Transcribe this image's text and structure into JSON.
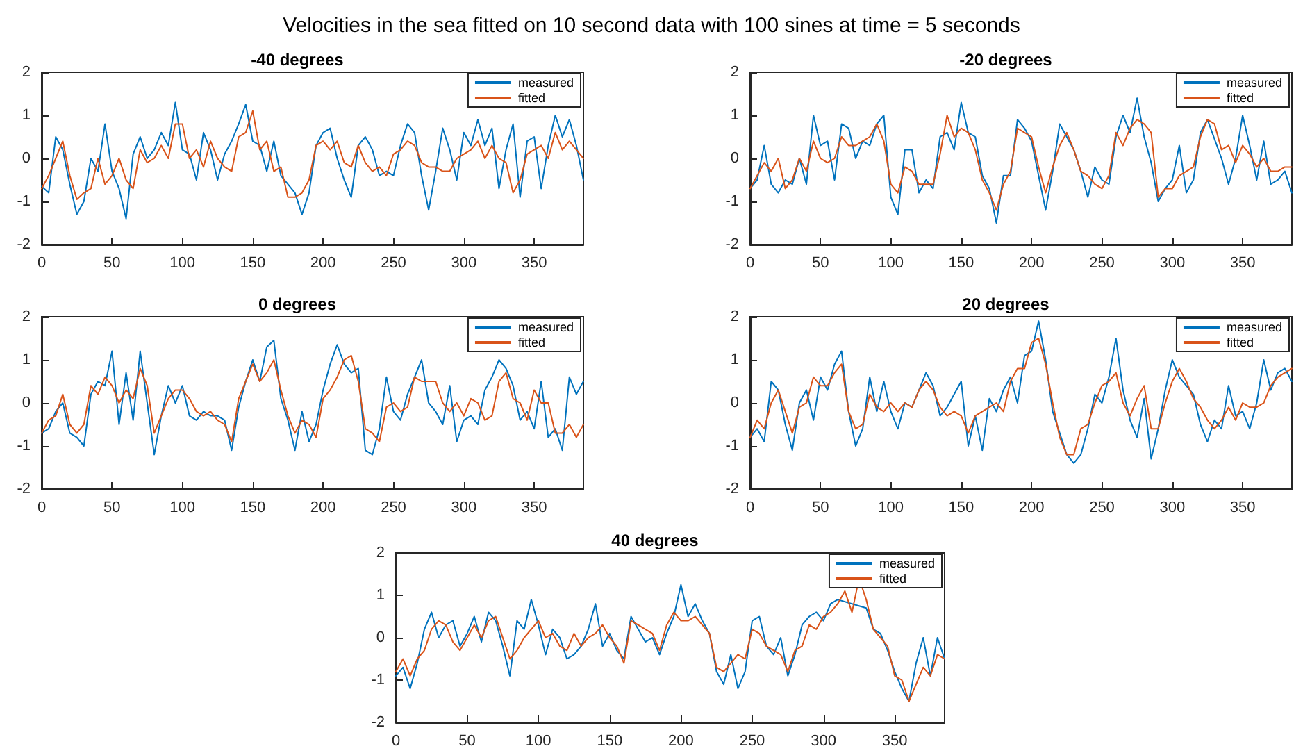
{
  "chart_data": [
    {
      "type": "line",
      "title": "-40 degrees",
      "annotations": [
        "Velocities in the sea fitted on 10 second data with 100 sines at time = 5 seconds"
      ],
      "legend": "top right",
      "grid": false,
      "xlim": [
        0,
        385
      ],
      "xticks": [
        0,
        50,
        100,
        150,
        200,
        250,
        300,
        350
      ],
      "ylim": [
        -2,
        2
      ],
      "yticks": [
        -2,
        -1,
        0,
        1,
        2
      ],
      "x": [
        0,
        5,
        10,
        15,
        20,
        25,
        30,
        35,
        40,
        45,
        50,
        55,
        60,
        65,
        70,
        75,
        80,
        85,
        90,
        95,
        100,
        105,
        110,
        115,
        120,
        125,
        130,
        135,
        140,
        145,
        150,
        155,
        160,
        165,
        170,
        175,
        180,
        185,
        190,
        195,
        200,
        205,
        210,
        215,
        220,
        225,
        230,
        235,
        240,
        245,
        250,
        255,
        260,
        265,
        270,
        275,
        280,
        285,
        290,
        295,
        300,
        305,
        310,
        315,
        320,
        325,
        330,
        335,
        340,
        345,
        350,
        355,
        360,
        365,
        370,
        375,
        380,
        385
      ],
      "series": [
        {
          "name": "measured",
          "color": "#0072bd",
          "values": [
            -0.65,
            -0.8,
            0.5,
            0.2,
            -0.6,
            -1.3,
            -1.0,
            0.0,
            -0.3,
            0.8,
            -0.3,
            -0.7,
            -1.4,
            0.1,
            0.5,
            0.0,
            0.2,
            0.6,
            0.3,
            1.3,
            0.2,
            0.1,
            -0.5,
            0.6,
            0.2,
            -0.5,
            0.1,
            0.4,
            0.8,
            1.25,
            0.4,
            0.3,
            -0.3,
            0.4,
            -0.4,
            -0.6,
            -0.8,
            -1.3,
            -0.8,
            0.3,
            0.6,
            0.7,
            0.0,
            -0.5,
            -0.9,
            0.3,
            0.5,
            0.2,
            -0.4,
            -0.3,
            -0.4,
            0.3,
            0.8,
            0.6,
            -0.4,
            -1.2,
            -0.3,
            0.7,
            0.2,
            -0.5,
            0.6,
            0.3,
            0.9,
            0.3,
            0.7,
            -0.7,
            0.2,
            0.8,
            -0.9,
            0.4,
            0.5,
            -0.7,
            0.3,
            1.0,
            0.5,
            0.9,
            0.3,
            -0.5
          ]
        },
        {
          "name": "fitted",
          "color": "#d95319",
          "values": [
            -0.7,
            -0.4,
            0.0,
            0.4,
            -0.4,
            -0.95,
            -0.8,
            -0.7,
            0.0,
            -0.6,
            -0.4,
            0.0,
            -0.5,
            -0.7,
            0.2,
            -0.1,
            0.0,
            0.3,
            0.0,
            0.8,
            0.8,
            0.0,
            0.2,
            -0.2,
            0.4,
            0.0,
            -0.2,
            -0.3,
            0.5,
            0.6,
            1.1,
            0.2,
            0.4,
            -0.3,
            -0.2,
            -0.9,
            -0.9,
            -0.8,
            -0.5,
            0.3,
            0.4,
            0.2,
            0.4,
            -0.1,
            -0.2,
            0.3,
            -0.1,
            -0.3,
            -0.2,
            -0.4,
            0.1,
            0.2,
            0.4,
            0.3,
            -0.1,
            -0.2,
            -0.2,
            -0.3,
            -0.3,
            0.0,
            0.1,
            0.2,
            0.4,
            0.0,
            0.3,
            0.0,
            -0.1,
            -0.8,
            -0.5,
            0.1,
            0.2,
            0.3,
            0.0,
            0.6,
            0.2,
            0.4,
            0.2,
            0.0
          ]
        }
      ]
    },
    {
      "type": "line",
      "title": "-20 degrees",
      "legend": "top right",
      "grid": false,
      "xlim": [
        0,
        385
      ],
      "xticks": [
        0,
        50,
        100,
        150,
        200,
        250,
        300,
        350
      ],
      "ylim": [
        -2,
        2
      ],
      "yticks": [
        -2,
        -1,
        0,
        1,
        2
      ],
      "x": [
        0,
        5,
        10,
        15,
        20,
        25,
        30,
        35,
        40,
        45,
        50,
        55,
        60,
        65,
        70,
        75,
        80,
        85,
        90,
        95,
        100,
        105,
        110,
        115,
        120,
        125,
        130,
        135,
        140,
        145,
        150,
        155,
        160,
        165,
        170,
        175,
        180,
        185,
        190,
        195,
        200,
        205,
        210,
        215,
        220,
        225,
        230,
        235,
        240,
        245,
        250,
        255,
        260,
        265,
        270,
        275,
        280,
        285,
        290,
        295,
        300,
        305,
        310,
        315,
        320,
        325,
        330,
        335,
        340,
        345,
        350,
        355,
        360,
        365,
        370,
        375,
        380,
        385
      ],
      "series": [
        {
          "name": "measured",
          "color": "#0072bd",
          "values": [
            -0.7,
            -0.5,
            0.3,
            -0.6,
            -0.8,
            -0.5,
            -0.6,
            0.0,
            -0.6,
            1.0,
            0.3,
            0.4,
            -0.5,
            0.8,
            0.7,
            0.0,
            0.4,
            0.3,
            0.8,
            1.0,
            -0.9,
            -1.3,
            0.2,
            0.2,
            -0.8,
            -0.5,
            -0.7,
            0.5,
            0.6,
            0.2,
            1.3,
            0.6,
            0.5,
            -0.4,
            -0.7,
            -1.5,
            -0.4,
            -0.4,
            0.9,
            0.7,
            0.4,
            -0.4,
            -1.2,
            -0.3,
            0.8,
            0.5,
            0.2,
            -0.3,
            -0.9,
            -0.2,
            -0.5,
            -0.6,
            0.5,
            1.0,
            0.6,
            1.4,
            0.5,
            -0.1,
            -1.0,
            -0.7,
            -0.5,
            0.3,
            -0.8,
            -0.5,
            0.6,
            0.9,
            null,
            0.0,
            -0.6,
            0.0,
            1.0,
            0.3,
            -0.5,
            0.4,
            -0.6,
            -0.5,
            -0.3,
            -0.8
          ]
        },
        {
          "name": "fitted",
          "color": "#d95319",
          "values": [
            -0.7,
            -0.4,
            -0.1,
            -0.3,
            0.0,
            -0.7,
            -0.5,
            0.0,
            -0.3,
            0.4,
            0.0,
            -0.1,
            0.0,
            0.5,
            0.3,
            0.3,
            0.4,
            0.5,
            0.8,
            0.4,
            -0.6,
            -0.8,
            -0.2,
            -0.3,
            -0.6,
            -0.6,
            -0.6,
            0.1,
            1.0,
            0.5,
            0.7,
            0.6,
            0.2,
            -0.5,
            -0.8,
            -1.2,
            -0.6,
            -0.3,
            0.7,
            0.6,
            0.5,
            -0.2,
            -0.8,
            -0.2,
            0.3,
            0.6,
            0.2,
            -0.3,
            -0.4,
            -0.6,
            -0.7,
            -0.4,
            0.6,
            0.3,
            0.7,
            0.9,
            0.8,
            0.6,
            -0.9,
            -0.7,
            -0.7,
            -0.4,
            -0.3,
            -0.2,
            0.5,
            0.9,
            0.8,
            0.2,
            0.3,
            -0.1,
            0.3,
            0.1,
            -0.2,
            0.0,
            -0.3,
            -0.3,
            -0.2,
            -0.2
          ]
        }
      ]
    },
    {
      "type": "line",
      "title": "0 degrees",
      "legend": "top right",
      "grid": false,
      "xlim": [
        0,
        385
      ],
      "xticks": [
        0,
        50,
        100,
        150,
        200,
        250,
        300,
        350
      ],
      "ylim": [
        -2,
        2
      ],
      "yticks": [
        -2,
        -1,
        0,
        1,
        2
      ],
      "x": [
        0,
        5,
        10,
        15,
        20,
        25,
        30,
        35,
        40,
        45,
        50,
        55,
        60,
        65,
        70,
        75,
        80,
        85,
        90,
        95,
        100,
        105,
        110,
        115,
        120,
        125,
        130,
        135,
        140,
        145,
        150,
        155,
        160,
        165,
        170,
        175,
        180,
        185,
        190,
        195,
        200,
        205,
        210,
        215,
        220,
        225,
        230,
        235,
        240,
        245,
        250,
        255,
        260,
        265,
        270,
        275,
        280,
        285,
        290,
        295,
        300,
        305,
        310,
        315,
        320,
        325,
        330,
        335,
        340,
        345,
        350,
        355,
        360,
        365,
        370,
        375,
        380,
        385
      ],
      "series": [
        {
          "name": "measured",
          "color": "#0072bd",
          "values": [
            -0.7,
            -0.6,
            -0.2,
            0.0,
            -0.7,
            -0.8,
            -1.0,
            0.2,
            0.5,
            0.4,
            1.2,
            -0.5,
            0.7,
            -0.4,
            1.2,
            0.0,
            -1.2,
            -0.3,
            0.4,
            0.0,
            0.4,
            -0.3,
            -0.4,
            -0.2,
            -0.3,
            -0.3,
            -0.4,
            -1.1,
            -0.1,
            0.5,
            1.0,
            0.5,
            1.3,
            1.45,
            0.1,
            -0.4,
            -1.1,
            -0.2,
            -0.9,
            -0.5,
            0.3,
            0.9,
            1.35,
            0.9,
            0.7,
            0.8,
            -1.1,
            -1.2,
            -0.6,
            0.6,
            -0.2,
            -0.4,
            0.2,
            0.6,
            1.0,
            0.0,
            -0.2,
            -0.5,
            0.4,
            -0.9,
            -0.4,
            -0.3,
            -0.5,
            0.3,
            0.6,
            1.0,
            0.8,
            0.4,
            -0.4,
            -0.2,
            -0.6,
            0.5,
            -0.8,
            -0.6,
            -1.1,
            0.6,
            0.2,
            0.5
          ]
        },
        {
          "name": "fitted",
          "color": "#d95319",
          "values": [
            -0.7,
            -0.4,
            -0.3,
            0.2,
            -0.5,
            -0.7,
            -0.5,
            0.4,
            0.2,
            0.6,
            0.4,
            0.0,
            0.3,
            0.1,
            0.8,
            0.4,
            -0.7,
            -0.3,
            0.1,
            0.3,
            0.3,
            0.1,
            -0.2,
            -0.3,
            -0.2,
            -0.4,
            -0.5,
            -0.9,
            0.1,
            0.5,
            0.9,
            0.5,
            0.7,
            1.0,
            0.3,
            -0.3,
            -0.7,
            -0.4,
            -0.5,
            -0.8,
            0.1,
            0.3,
            0.6,
            1.0,
            1.1,
            0.5,
            -0.6,
            -0.7,
            -0.9,
            -0.1,
            0.0,
            -0.2,
            -0.1,
            0.6,
            0.5,
            0.5,
            0.5,
            0.0,
            -0.2,
            0.0,
            -0.3,
            0.1,
            0.0,
            -0.4,
            -0.3,
            0.5,
            0.7,
            0.1,
            0.0,
            -0.4,
            0.3,
            0.0,
            0.0,
            -0.7,
            -0.7,
            -0.5,
            -0.8,
            -0.5
          ]
        }
      ]
    },
    {
      "type": "line",
      "title": "20 degrees",
      "legend": "top right",
      "grid": false,
      "xlim": [
        0,
        385
      ],
      "xticks": [
        0,
        50,
        100,
        150,
        200,
        250,
        300,
        350
      ],
      "ylim": [
        -2,
        2
      ],
      "yticks": [
        -2,
        -1,
        0,
        1,
        2
      ],
      "x": [
        0,
        5,
        10,
        15,
        20,
        25,
        30,
        35,
        40,
        45,
        50,
        55,
        60,
        65,
        70,
        75,
        80,
        85,
        90,
        95,
        100,
        105,
        110,
        115,
        120,
        125,
        130,
        135,
        140,
        145,
        150,
        155,
        160,
        165,
        170,
        175,
        180,
        185,
        190,
        195,
        200,
        205,
        210,
        215,
        220,
        225,
        230,
        235,
        240,
        245,
        250,
        255,
        260,
        265,
        270,
        275,
        280,
        285,
        290,
        295,
        300,
        305,
        310,
        315,
        320,
        325,
        330,
        335,
        340,
        345,
        350,
        355,
        360,
        365,
        370,
        375,
        380,
        385
      ],
      "series": [
        {
          "name": "measured",
          "color": "#0072bd",
          "values": [
            -0.8,
            -0.6,
            -0.9,
            0.5,
            0.3,
            -0.5,
            -1.1,
            0.0,
            0.3,
            -0.4,
            0.6,
            0.3,
            0.9,
            1.2,
            -0.2,
            -1.0,
            -0.6,
            0.6,
            -0.2,
            0.5,
            -0.2,
            -0.6,
            0.0,
            -0.1,
            0.3,
            0.7,
            0.4,
            -0.3,
            -0.1,
            0.2,
            0.5,
            -1.0,
            -0.3,
            -1.1,
            0.1,
            -0.2,
            0.3,
            0.6,
            0.0,
            1.1,
            1.2,
            1.9,
            1.0,
            -0.2,
            -0.7,
            -1.2,
            -1.4,
            -1.2,
            -0.6,
            0.2,
            0.0,
            0.6,
            1.5,
            0.3,
            -0.4,
            -0.8,
            0.1,
            -1.3,
            -0.6,
            0.3,
            1.0,
            0.6,
            null,
            0.2,
            -0.5,
            -0.9,
            -0.4,
            -0.6,
            0.4,
            -0.3,
            -0.2,
            -0.6,
            0.0,
            1.0,
            0.3,
            0.7,
            0.8,
            0.5
          ]
        },
        {
          "name": "fitted",
          "color": "#d95319",
          "values": [
            -0.8,
            -0.4,
            -0.6,
            0.0,
            0.3,
            -0.2,
            -0.7,
            -0.1,
            0.0,
            0.6,
            0.4,
            0.4,
            0.7,
            0.9,
            -0.2,
            -0.6,
            -0.5,
            0.2,
            -0.1,
            -0.2,
            0.0,
            -0.2,
            0.0,
            -0.1,
            0.3,
            0.5,
            0.3,
            -0.1,
            -0.3,
            -0.2,
            -0.3,
            -0.7,
            -0.3,
            -0.2,
            -0.1,
            0.0,
            -0.2,
            0.5,
            0.8,
            0.8,
            1.4,
            1.5,
            0.9,
            0.0,
            -0.8,
            -1.2,
            -1.2,
            -0.6,
            -0.5,
            0.0,
            0.4,
            0.5,
            0.7,
            0.0,
            -0.3,
            0.1,
            0.4,
            -0.6,
            -0.6,
            0.0,
            0.5,
            0.8,
            0.5,
            0.1,
            -0.1,
            -0.4,
            -0.6,
            -0.4,
            -0.1,
            -0.4,
            0.0,
            -0.1,
            -0.1,
            0.0,
            0.4,
            0.6,
            0.7,
            0.8
          ]
        }
      ]
    },
    {
      "type": "line",
      "title": "40 degrees",
      "legend": "top right",
      "grid": false,
      "xlim": [
        0,
        385
      ],
      "xticks": [
        0,
        50,
        100,
        150,
        200,
        250,
        300,
        350
      ],
      "ylim": [
        -2,
        2
      ],
      "yticks": [
        -2,
        -1,
        0,
        1,
        2
      ],
      "x": [
        0,
        5,
        10,
        15,
        20,
        25,
        30,
        35,
        40,
        45,
        50,
        55,
        60,
        65,
        70,
        75,
        80,
        85,
        90,
        95,
        100,
        105,
        110,
        115,
        120,
        125,
        130,
        135,
        140,
        145,
        150,
        155,
        160,
        165,
        170,
        175,
        180,
        185,
        190,
        195,
        200,
        205,
        210,
        215,
        220,
        225,
        230,
        235,
        240,
        245,
        250,
        255,
        260,
        265,
        270,
        275,
        280,
        285,
        290,
        295,
        300,
        305,
        310,
        315,
        320,
        325,
        330,
        335,
        340,
        345,
        350,
        355,
        360,
        365,
        370,
        375,
        380,
        385
      ],
      "series": [
        {
          "name": "measured",
          "color": "#0072bd",
          "values": [
            -0.9,
            -0.7,
            -1.2,
            -0.6,
            0.2,
            0.6,
            0.0,
            0.3,
            0.4,
            -0.2,
            0.1,
            0.5,
            -0.1,
            0.6,
            0.4,
            -0.2,
            -0.9,
            0.4,
            0.2,
            0.9,
            0.3,
            -0.4,
            0.2,
            0.0,
            -0.5,
            -0.4,
            -0.2,
            0.2,
            0.8,
            -0.2,
            0.1,
            -0.3,
            -0.5,
            0.5,
            0.2,
            -0.1,
            0.0,
            -0.4,
            0.1,
            0.5,
            1.25,
            0.5,
            0.8,
            0.4,
            0.1,
            -0.8,
            -1.1,
            -0.4,
            -1.2,
            -0.8,
            0.4,
            0.5,
            -0.2,
            -0.4,
            0.0,
            -0.9,
            -0.4,
            0.3,
            0.5,
            0.6,
            0.4,
            0.8,
            0.9,
            null,
            0.8,
            null,
            0.7,
            0.2,
            0.1,
            -0.3,
            -0.8,
            -1.2,
            -1.5,
            -0.6,
            0.0,
            -0.9,
            0.0,
            -0.5
          ]
        },
        {
          "name": "fitted",
          "color": "#d95319",
          "values": [
            -0.8,
            -0.5,
            -0.9,
            -0.5,
            -0.3,
            0.2,
            0.4,
            0.3,
            -0.1,
            -0.3,
            0.0,
            0.3,
            0.0,
            0.4,
            0.5,
            0.0,
            -0.5,
            -0.3,
            0.0,
            0.2,
            0.4,
            0.0,
            0.1,
            -0.2,
            -0.3,
            0.1,
            -0.2,
            0.0,
            0.1,
            0.3,
            0.0,
            -0.2,
            -0.6,
            0.4,
            0.3,
            0.2,
            0.1,
            -0.3,
            0.3,
            0.6,
            0.4,
            0.4,
            0.5,
            0.3,
            0.1,
            -0.7,
            -0.8,
            -0.6,
            -0.4,
            -0.5,
            0.2,
            0.1,
            -0.2,
            -0.3,
            -0.4,
            -0.8,
            -0.3,
            -0.2,
            0.3,
            0.2,
            0.5,
            0.6,
            0.8,
            1.1,
            0.6,
            1.4,
            0.9,
            0.2,
            0.0,
            -0.2,
            -0.9,
            -1.0,
            -1.5,
            -1.1,
            -0.7,
            -0.9,
            -0.4,
            -0.5
          ]
        }
      ]
    }
  ]
}
